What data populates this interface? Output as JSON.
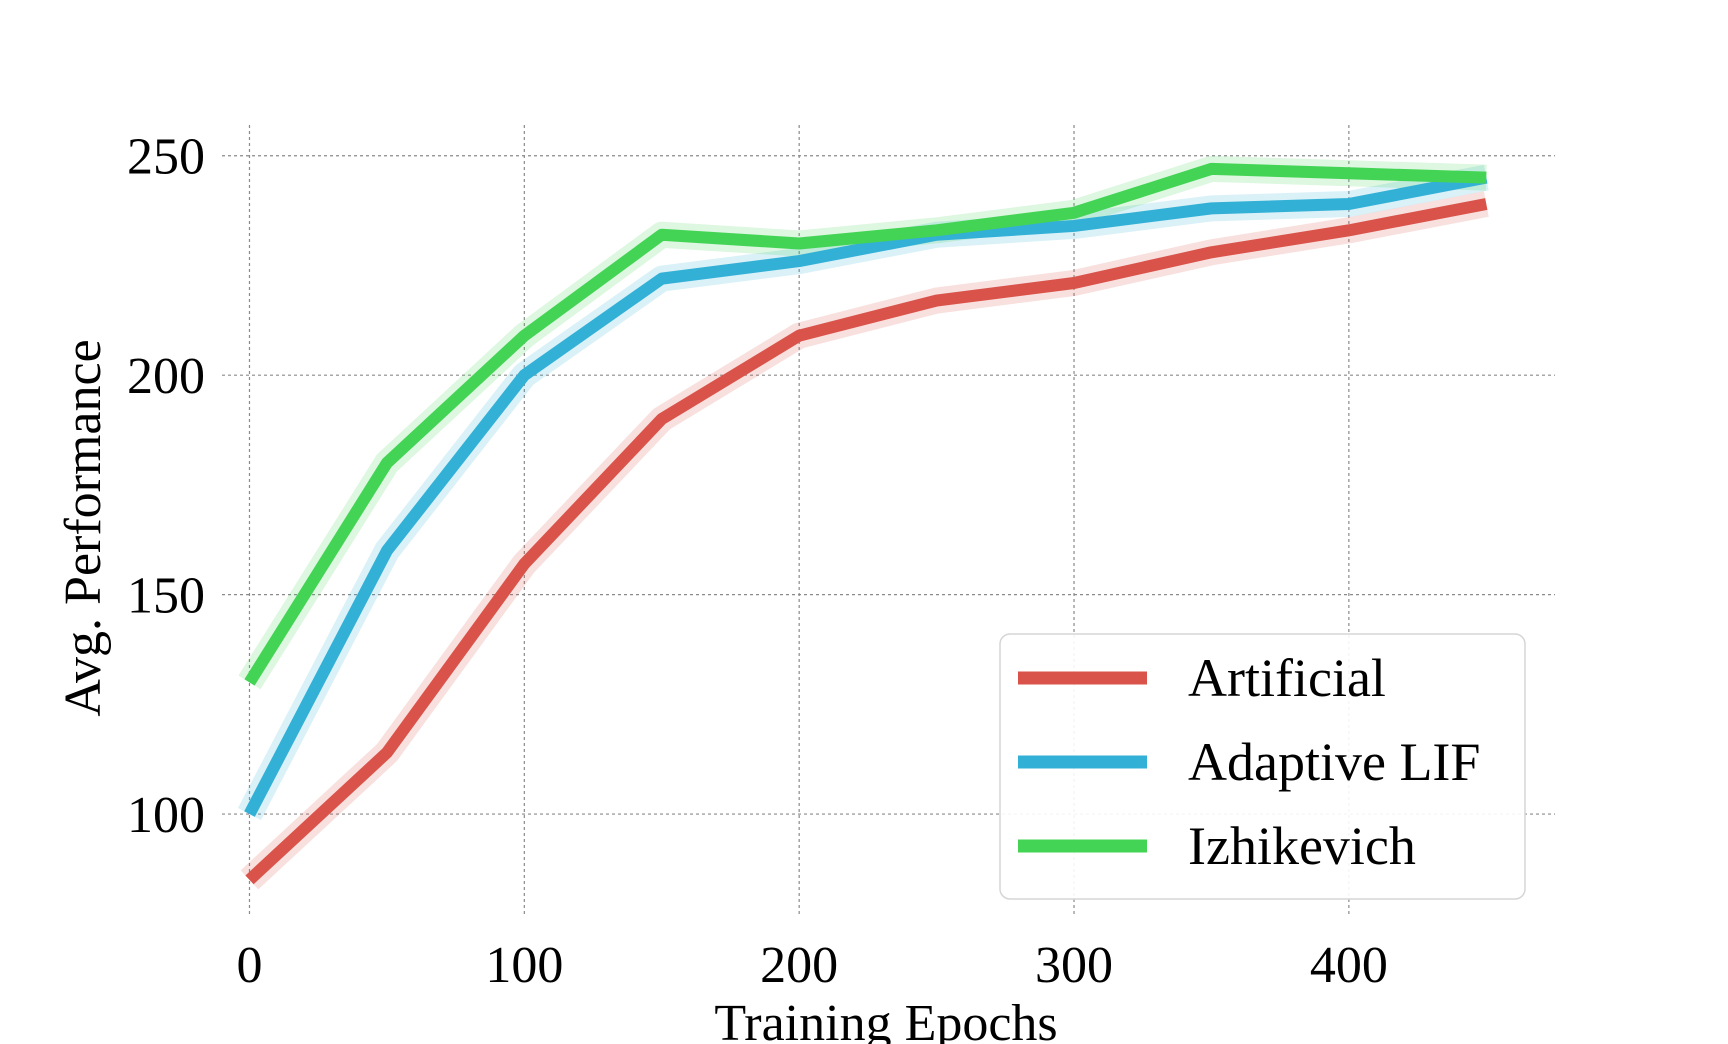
{
  "chart_data": {
    "type": "line",
    "xlabel": "Training Epochs",
    "ylabel": "Avg. Performance",
    "xlim": [
      -10,
      475
    ],
    "ylim": [
      77,
      257
    ],
    "xticks": [
      0,
      100,
      200,
      300,
      400
    ],
    "yticks": [
      100,
      150,
      200,
      250
    ],
    "grid": true,
    "legend_position": "lower-right",
    "series": [
      {
        "name": "Artificial",
        "color": "#d9534a",
        "x": [
          0,
          50,
          100,
          150,
          200,
          250,
          300,
          350,
          400,
          450
        ],
        "y": [
          85,
          114,
          157,
          190,
          209,
          217,
          221,
          228,
          233,
          239
        ]
      },
      {
        "name": "Adaptive LIF",
        "color": "#33b0d6",
        "x": [
          0,
          50,
          100,
          150,
          200,
          250,
          300,
          350,
          400,
          450
        ],
        "y": [
          100,
          160,
          200,
          222,
          226,
          232,
          234,
          238,
          239,
          245
        ]
      },
      {
        "name": "Izhikevich",
        "color": "#44d455",
        "x": [
          0,
          50,
          100,
          150,
          200,
          250,
          300,
          350,
          400,
          450
        ],
        "y": [
          130,
          180,
          209,
          232,
          230,
          233,
          237,
          247,
          246,
          245
        ]
      }
    ]
  }
}
